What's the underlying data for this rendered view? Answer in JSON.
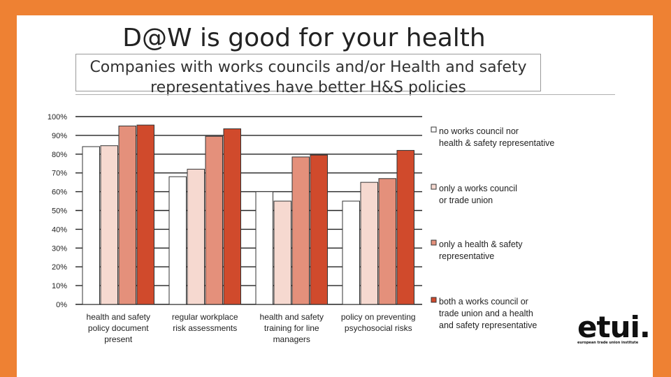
{
  "colors": {
    "accent": "#ee8133"
  },
  "slide": {
    "title": "D@W is good for your health",
    "subtitle_line1": "Companies with works councils and/or Health and safety",
    "subtitle_line2": "representatives have better H&S policies"
  },
  "logo": {
    "text": "etui.",
    "tagline": "european trade union institute"
  },
  "chart_data": {
    "type": "bar",
    "title": "",
    "xlabel": "",
    "ylabel": "",
    "ylim": [
      0,
      100
    ],
    "y_ticks": [
      "0%",
      "10%",
      "20%",
      "30%",
      "40%",
      "50%",
      "60%",
      "70%",
      "80%",
      "90%",
      "100%"
    ],
    "grid": true,
    "legend_position": "right",
    "categories": [
      [
        "health and safety",
        "policy document",
        "present"
      ],
      [
        "regular workplace",
        "risk assessments"
      ],
      [
        "health and safety",
        "training for line",
        "managers"
      ],
      [
        "policy on preventing",
        "psychosocial risks"
      ]
    ],
    "series": [
      {
        "name": [
          "no works council nor",
          "health & safety representative"
        ],
        "color": "#ffffff",
        "values": [
          84,
          68,
          60,
          55
        ]
      },
      {
        "name": [
          "only a works council",
          "or trade union"
        ],
        "color": "#f6d9d0",
        "values": [
          84.5,
          72,
          55,
          65
        ]
      },
      {
        "name": [
          "only a health & safety",
          "representative"
        ],
        "color": "#e4907b",
        "values": [
          95,
          89.5,
          78.5,
          67
        ]
      },
      {
        "name": [
          "both a works council or",
          "trade union and a health",
          "and safety representative"
        ],
        "color": "#d04a2c",
        "values": [
          95.5,
          93.5,
          79.5,
          82
        ]
      }
    ]
  }
}
